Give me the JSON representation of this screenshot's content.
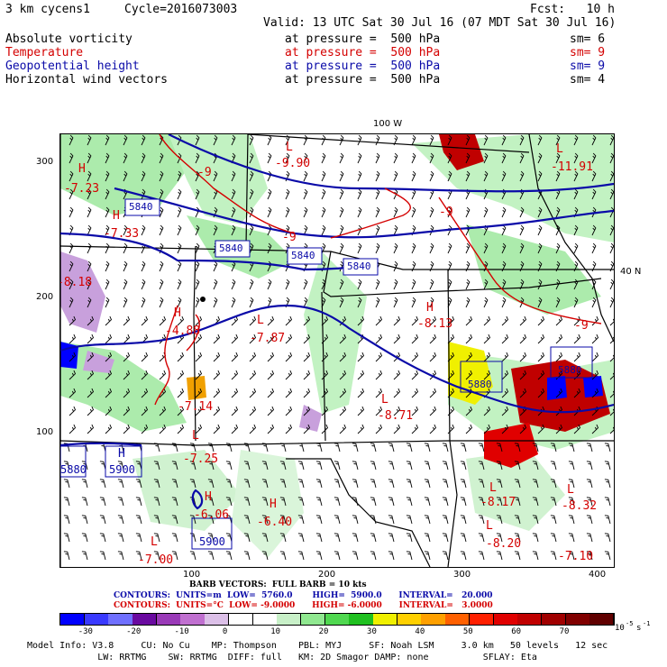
{
  "header": {
    "run": "3 km cycens1",
    "cycle": "Cycle=2016073003",
    "fcst": "Fcst:   10 h",
    "valid": "Valid: 13 UTC Sat 30 Jul 16 (07 MDT Sat 30 Jul 16)"
  },
  "fields": [
    {
      "name": "Absolute vorticity",
      "level": "at pressure =  500 hPa",
      "sm": "sm= 6",
      "color": "#000000"
    },
    {
      "name": "Temperature",
      "level": "at pressure =  500 hPa",
      "sm": "sm= 9",
      "color": "#d40000"
    },
    {
      "name": "Geopotential height",
      "level": "at pressure =  500 hPa",
      "sm": "sm= 9",
      "color": "#0a0aa8"
    },
    {
      "name": "Horizontal wind vectors",
      "level": "at pressure =  500 hPa",
      "sm": "sm= 4",
      "color": "#000000"
    }
  ],
  "map": {
    "top_label": "100 W",
    "right_label": "40 N",
    "x_ticks": [
      "100",
      "200",
      "300",
      "400"
    ],
    "y_ticks": [
      "300",
      "200",
      "100"
    ],
    "height_labels": [
      "5840",
      "5840",
      "5840",
      "5840",
      "5880",
      "5880",
      "5900",
      "5900",
      "5880"
    ],
    "temp_labels": [
      "-9.90",
      "-11.91",
      "-7.23",
      "-7.33",
      "-8.18",
      "-9",
      "-9",
      "-9",
      "-9",
      "-4.88",
      "-7.87",
      "-8.13",
      "-7.14",
      "-8.71",
      "-7.25",
      "-8.17",
      "-8.32",
      "-6.40",
      "-6.06",
      "-7.00",
      "-8.20",
      "-7.10"
    ],
    "hl_letters": [
      "H",
      "H",
      "L",
      "L",
      "H",
      "H",
      "L",
      "H",
      "H",
      "L",
      "L",
      "H",
      "L",
      "L",
      "L",
      "L"
    ]
  },
  "footer": {
    "barb": "BARB VECTORS:  FULL BARB = 10 kts",
    "contours_blue": "CONTOURS:  UNITS=m  LOW=  5760.0       HIGH=  5900.0      INTERVAL=   20.000",
    "contours_red": "CONTOURS:  UNITS=°C  LOW= -9.0000      HIGH= -6.0000      INTERVAL=   3.0000",
    "colorbar_labels": [
      "-30",
      "-20",
      "-10",
      "0",
      "10",
      "20",
      "30",
      "40",
      "50",
      "60",
      "70"
    ],
    "colorbar_units": "10",
    "colorbar_exp": "-5",
    "colorbar_s": "s",
    "colorbar_s_exp": "-1",
    "colorbar_colors": [
      "#0000ff",
      "#3a3aff",
      "#7070ff",
      "#6a0aa0",
      "#9a3ab8",
      "#c070d0",
      "#dcc0e8",
      "#ffffff",
      "#ffffff",
      "#c8f0c8",
      "#90e890",
      "#50d850",
      "#20c020",
      "#f0f000",
      "#ffd000",
      "#ffa000",
      "#ff6000",
      "#ff2000",
      "#e00000",
      "#c00000",
      "#a00000",
      "#800000",
      "#600000"
    ],
    "model_line1": "Model Info: V3.8     CU: No Cu    MP: Thompson    PBL: MYJ     SF: Noah LSM     3.0 km   50 levels   12 sec",
    "model_line2": "             LW: RRTMG    SW: RRTMG  DIFF: full   KM: 2D Smagor DAMP: none          SFLAY: Eta"
  }
}
